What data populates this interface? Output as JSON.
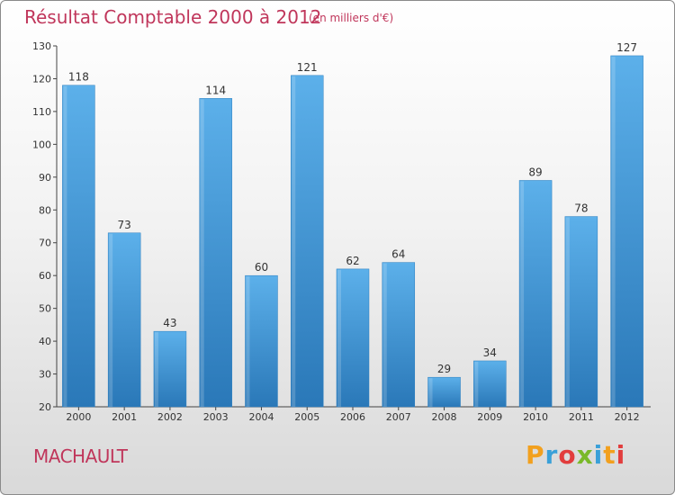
{
  "header": {
    "title": "Résultat Comptable 2000 à 2012",
    "subtitle": "(en milliers d'€)"
  },
  "footer": {
    "commune": "MACHAULT",
    "logo_text": "Proxiti",
    "logo_colors": [
      "#f2a01e",
      "#3aa0d8",
      "#e23d3d",
      "#7ab929",
      "#3aa0d8",
      "#f2a01e",
      "#e23d3d"
    ]
  },
  "colors": {
    "title": "#c0365b",
    "bar_light": "#5aace6",
    "bar_dark": "#2a78b8",
    "axis": "#333333"
  },
  "chart_data": {
    "type": "bar",
    "title": "Résultat Comptable 2000 à 2012",
    "subtitle": "(en milliers d'€)",
    "xlabel": "",
    "ylabel": "",
    "categories": [
      "2000",
      "2001",
      "2002",
      "2003",
      "2004",
      "2005",
      "2006",
      "2007",
      "2008",
      "2009",
      "2010",
      "2011",
      "2012"
    ],
    "values": [
      118,
      73,
      43,
      114,
      60,
      121,
      62,
      64,
      29,
      34,
      89,
      78,
      127
    ],
    "ylim": [
      20,
      130
    ],
    "yticks": [
      20,
      30,
      40,
      50,
      60,
      70,
      80,
      90,
      100,
      110,
      120,
      130
    ],
    "grid": false,
    "legend": "none"
  }
}
